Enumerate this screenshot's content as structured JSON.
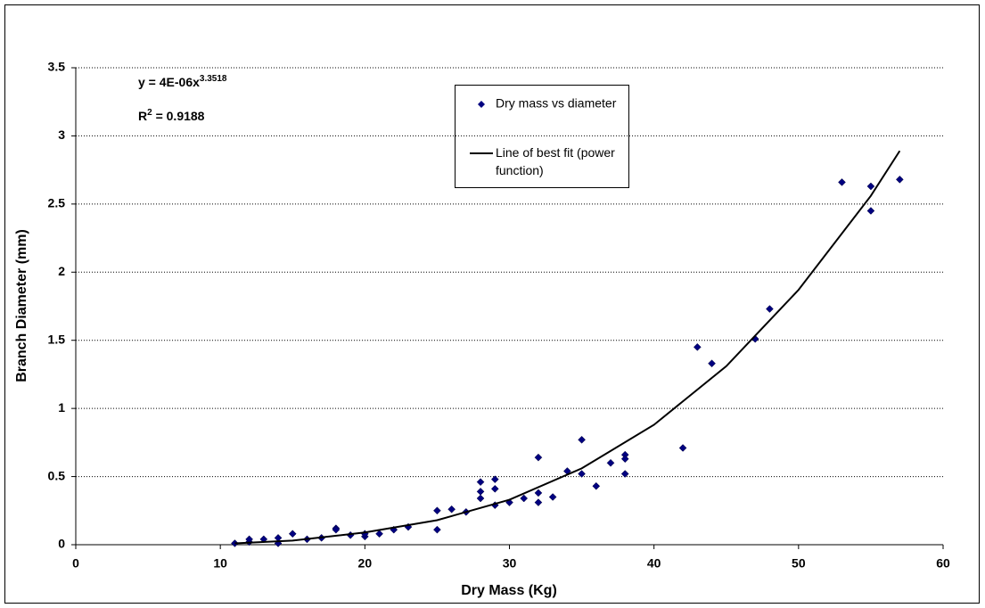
{
  "chart_data": {
    "type": "scatter",
    "x_label": "Dry Mass (Kg)",
    "y_label": "Branch Diameter (mm)",
    "equation": {
      "text": "y = 4E-06x",
      "exponent": "3.3518"
    },
    "r_squared": {
      "text": "R",
      "exponent": "2",
      "value_text": " = 0.9188"
    },
    "xlim": [
      0,
      60
    ],
    "xticks": [
      0,
      10,
      20,
      30,
      40,
      50,
      60
    ],
    "ylim": [
      0,
      3.5
    ],
    "yticks": [
      0,
      0.5,
      1,
      1.5,
      2,
      2.5,
      3,
      3.5
    ],
    "grid": true,
    "legend": "top-center",
    "series": [
      {
        "name": "Dry mass vs diameter",
        "color": "#000080",
        "marker": "diamond",
        "x": [
          11,
          12,
          12,
          13,
          14,
          14,
          15,
          16,
          17,
          18,
          18,
          19,
          20,
          20,
          21,
          22,
          23,
          25,
          25,
          26,
          27,
          28,
          28,
          28,
          29,
          29,
          29,
          30,
          31,
          32,
          32,
          32,
          33,
          34,
          35,
          35,
          36,
          37,
          38,
          38,
          38,
          42,
          43,
          44,
          47,
          48,
          53,
          55,
          55,
          57
        ],
        "values": [
          0.01,
          0.02,
          0.04,
          0.04,
          0.01,
          0.05,
          0.08,
          0.04,
          0.05,
          0.12,
          0.11,
          0.07,
          0.06,
          0.08,
          0.08,
          0.11,
          0.13,
          0.25,
          0.11,
          0.26,
          0.24,
          0.46,
          0.39,
          0.34,
          0.48,
          0.41,
          0.29,
          0.31,
          0.34,
          0.64,
          0.38,
          0.31,
          0.35,
          0.54,
          0.77,
          0.52,
          0.43,
          0.6,
          0.66,
          0.63,
          0.52,
          0.71,
          1.45,
          1.33,
          1.51,
          1.73,
          2.66,
          2.63,
          2.45,
          2.68
        ]
      },
      {
        "name": "Line of best fit (power function)",
        "color": "#000000",
        "marker": "line",
        "x": [
          11,
          15,
          20,
          25,
          30,
          35,
          40,
          45,
          50,
          55,
          57
        ],
        "values": [
          0.01,
          0.03,
          0.09,
          0.18,
          0.33,
          0.56,
          0.88,
          1.31,
          1.87,
          2.56,
          2.89
        ]
      }
    ]
  }
}
